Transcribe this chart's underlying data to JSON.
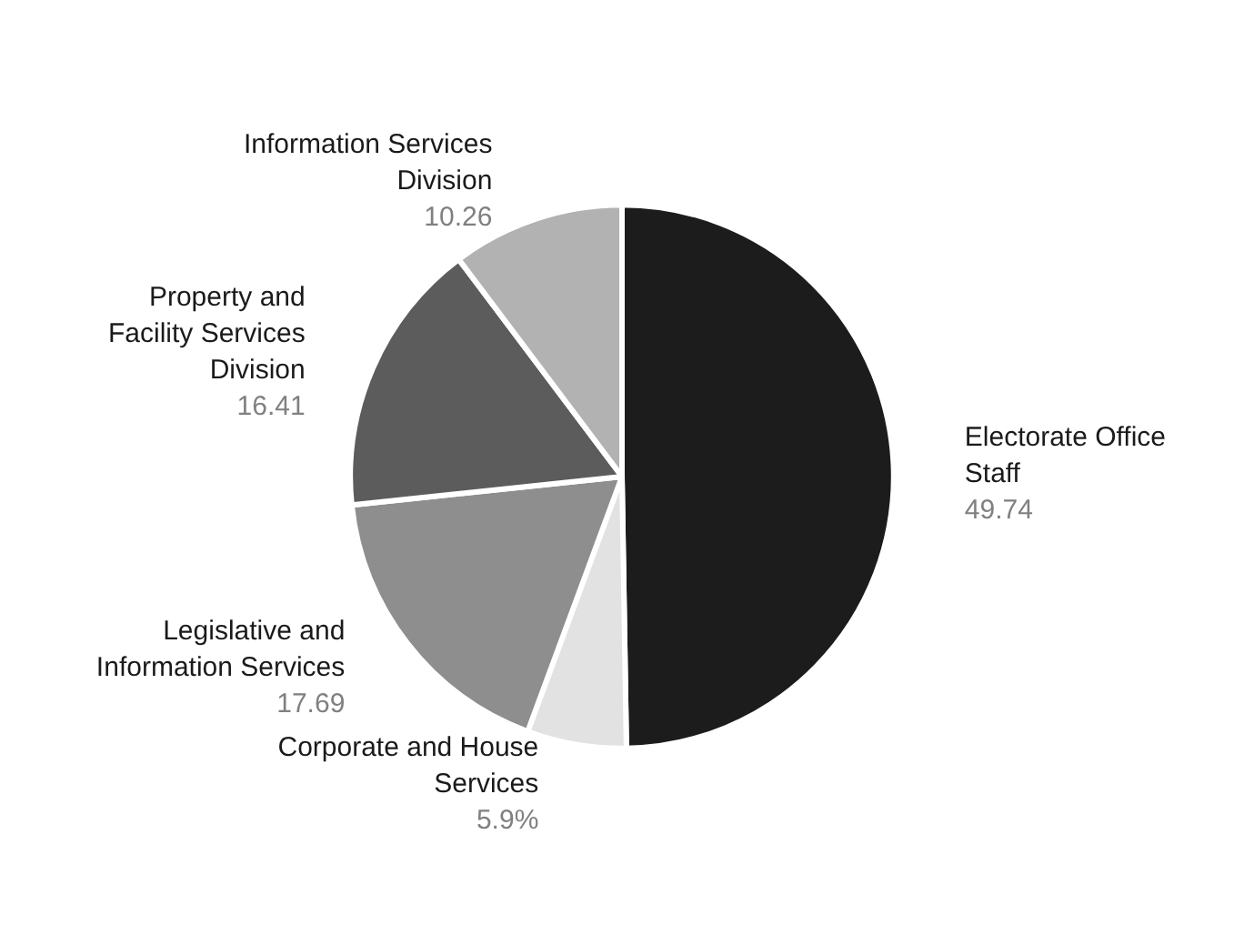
{
  "chart_data": {
    "type": "pie",
    "categories": [
      "Electorate Office Staff",
      "Corporate and House Services",
      "Legislative and Information Services",
      "Property and Facility Services Division",
      "Information Services Division"
    ],
    "values": [
      49.74,
      5.9,
      17.69,
      16.41,
      10.26
    ],
    "colors": [
      "#1c1c1c",
      "#e2e2e2",
      "#8e8e8e",
      "#5c5c5c",
      "#b2b2b2"
    ],
    "value_labels": [
      "49.74",
      "5.9%",
      "17.69",
      "16.41",
      "10.26"
    ],
    "legend": false
  }
}
